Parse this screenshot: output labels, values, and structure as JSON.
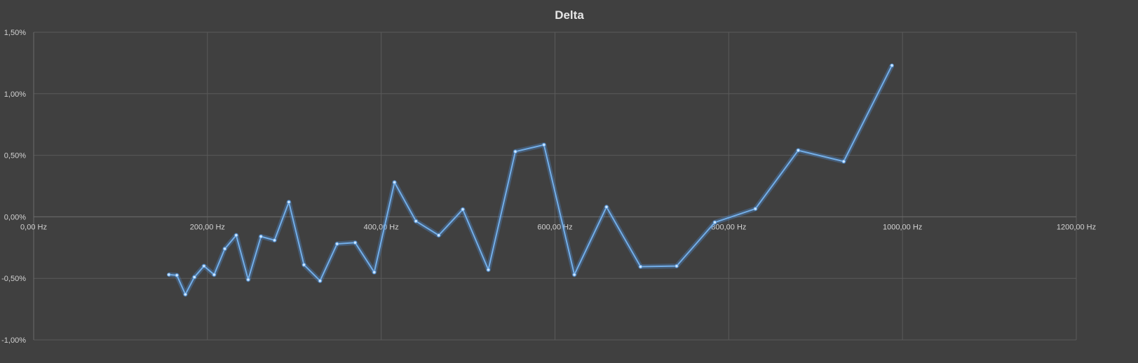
{
  "chart_data": {
    "type": "line",
    "title": "Delta",
    "xlabel": "",
    "ylabel": "",
    "xlim": [
      0,
      1200
    ],
    "ylim": [
      -1.0,
      1.5
    ],
    "grid": true,
    "legend": "none",
    "x_ticks": [
      "0,00 Hz",
      "200,00 Hz",
      "400,00 Hz",
      "600,00 Hz",
      "800,00 Hz",
      "1000,00 Hz",
      "1200,00 Hz"
    ],
    "x_tick_values": [
      0,
      200,
      400,
      600,
      800,
      1000,
      1200
    ],
    "y_ticks": [
      "1,50%",
      "1,00%",
      "0,50%",
      "0,00%",
      "-0,50%",
      "-1,00%"
    ],
    "y_tick_values": [
      1.5,
      1.0,
      0.5,
      0.0,
      -0.5,
      -1.0
    ],
    "series": [
      {
        "color": "#73aee8",
        "points": [
          [
            155.6,
            -0.47
          ],
          [
            164.8,
            -0.475
          ],
          [
            174.6,
            -0.63
          ],
          [
            185.0,
            -0.49
          ],
          [
            196.0,
            -0.4
          ],
          [
            207.7,
            -0.47
          ],
          [
            220.0,
            -0.26
          ],
          [
            233.1,
            -0.15
          ],
          [
            246.9,
            -0.51
          ],
          [
            261.6,
            -0.16
          ],
          [
            277.2,
            -0.19
          ],
          [
            293.7,
            0.12
          ],
          [
            311.1,
            -0.39
          ],
          [
            329.6,
            -0.52
          ],
          [
            349.2,
            -0.22
          ],
          [
            370.0,
            -0.21
          ],
          [
            392.0,
            -0.45
          ],
          [
            415.3,
            0.28
          ],
          [
            440.0,
            -0.035
          ],
          [
            466.2,
            -0.15
          ],
          [
            493.9,
            0.06
          ],
          [
            523.3,
            -0.43
          ],
          [
            554.4,
            0.53
          ],
          [
            587.3,
            0.585
          ],
          [
            622.3,
            -0.47
          ],
          [
            659.3,
            0.08
          ],
          [
            698.5,
            -0.405
          ],
          [
            740.0,
            -0.4
          ],
          [
            784.0,
            -0.045
          ],
          [
            830.6,
            0.065
          ],
          [
            880.0,
            0.54
          ],
          [
            932.3,
            0.45
          ],
          [
            987.8,
            1.23
          ]
        ]
      }
    ]
  }
}
